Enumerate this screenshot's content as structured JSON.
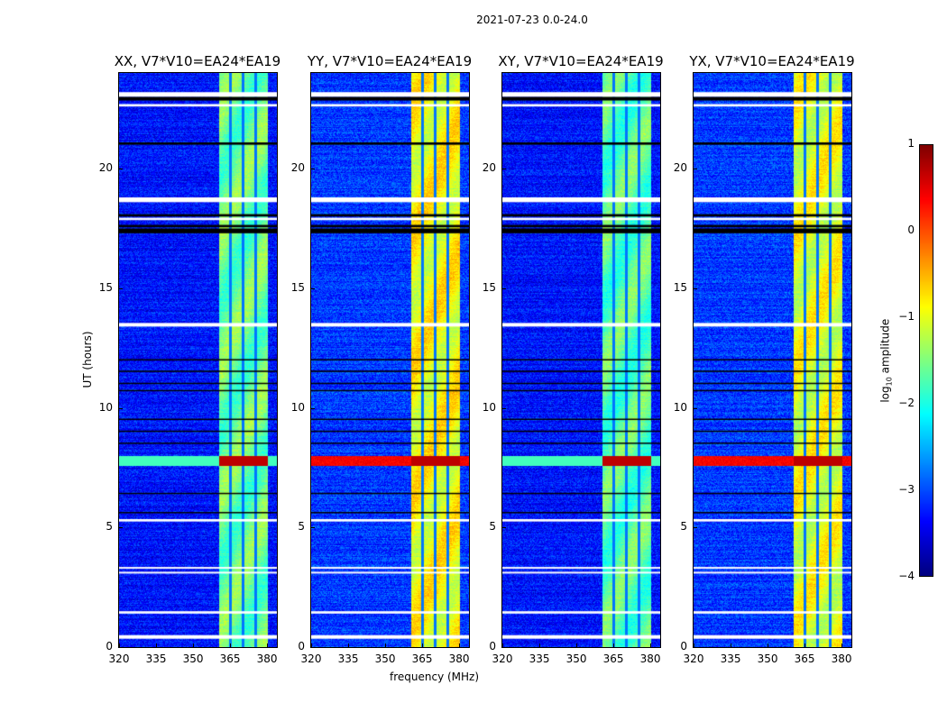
{
  "figure_title": "2021-07-23 0.0-24.0",
  "chart_data": {
    "type": "heatmap",
    "title": "2021-07-23 0.0-24.0",
    "xlabel": "frequency (MHz)",
    "ylabel": "UT (hours)",
    "xlim": [
      320,
      384
    ],
    "ylim": [
      0,
      24
    ],
    "xticks": [
      "320",
      "335",
      "350",
      "365",
      "380"
    ],
    "xtick_values": [
      320,
      335,
      350,
      365,
      380
    ],
    "yticks": [
      "0",
      "5",
      "10",
      "15",
      "20"
    ],
    "ytick_values": [
      0,
      5,
      10,
      15,
      20
    ],
    "panels": [
      {
        "title": "XX, V7*V10=EA24*EA19",
        "band_level": -1.6,
        "rfi_full_width": false
      },
      {
        "title": "YY, V7*V10=EA24*EA19",
        "band_level": -0.9,
        "rfi_full_width": true
      },
      {
        "title": "XY, V7*V10=EA24*EA19",
        "band_level": -1.7,
        "rfi_full_width": false
      },
      {
        "title": "YX, V7*V10=EA24*EA19",
        "band_level": -1.0,
        "rfi_full_width": true
      }
    ],
    "background_level": -3.3,
    "band_mhz": [
      360.5,
      380
    ],
    "band_gaps_mhz": [
      365.1,
      370.2,
      375.2
    ],
    "rfi_ut": [
      7.6,
      8.0
    ],
    "flagged_ut_white": [
      [
        23.0,
        23.2
      ],
      [
        22.6,
        22.7
      ],
      [
        18.6,
        18.8
      ],
      [
        17.85,
        17.95
      ],
      [
        13.4,
        13.55
      ],
      [
        5.25,
        5.35
      ],
      [
        1.4,
        1.5
      ],
      [
        0.35,
        0.5
      ],
      [
        3.3,
        3.35
      ],
      [
        3.1,
        3.15
      ]
    ],
    "flagged_ut_black": [
      [
        22.85,
        23.0
      ],
      [
        17.3,
        17.5
      ],
      [
        17.55,
        17.65
      ],
      [
        18.0,
        18.1
      ],
      [
        21.0,
        21.1
      ],
      [
        11.5,
        11.56
      ],
      [
        11.0,
        11.05
      ],
      [
        10.7,
        10.75
      ],
      [
        9.5,
        9.55
      ],
      [
        9.0,
        9.05
      ],
      [
        8.5,
        8.55
      ],
      [
        6.4,
        6.45
      ],
      [
        5.6,
        5.65
      ],
      [
        12.0,
        12.04
      ]
    ],
    "colorbar": {
      "label": "log10 amplitude",
      "label_main": "log",
      "label_sub": "10",
      "label_rest": " amplitude",
      "range": [
        -4,
        1
      ],
      "ticks": [
        "1",
        "0",
        "−1",
        "−2",
        "−3",
        "−4"
      ],
      "tick_values": [
        1,
        0,
        -1,
        -2,
        -3,
        -4
      ],
      "colormap": "jet"
    }
  }
}
